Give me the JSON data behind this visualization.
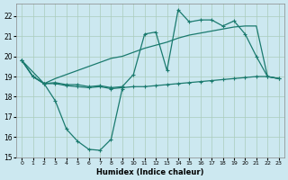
{
  "xlabel": "Humidex (Indice chaleur)",
  "background_color": "#cce8f0",
  "grid_color": "#aaccbb",
  "line_color": "#1a7a6e",
  "xlim": [
    -0.5,
    23.5
  ],
  "ylim": [
    15.0,
    22.6
  ],
  "yticks": [
    15,
    16,
    17,
    18,
    19,
    20,
    21,
    22
  ],
  "xticks": [
    0,
    1,
    2,
    3,
    4,
    5,
    6,
    7,
    8,
    9,
    10,
    11,
    12,
    13,
    14,
    15,
    16,
    17,
    18,
    19,
    20,
    21,
    22,
    23
  ],
  "curve_zigzag_x": [
    0,
    1,
    2,
    3,
    4,
    5,
    6,
    7,
    8,
    9,
    10,
    11,
    12,
    13,
    14,
    15,
    16,
    17,
    18,
    19,
    20,
    21,
    22,
    23
  ],
  "curve_zigzag_y": [
    19.8,
    19.0,
    18.65,
    18.7,
    18.6,
    18.6,
    18.5,
    18.55,
    18.45,
    18.5,
    19.1,
    21.1,
    21.2,
    19.3,
    22.3,
    21.7,
    21.8,
    21.8,
    21.5,
    21.75,
    21.1,
    20.0,
    19.0,
    18.9
  ],
  "curve_linear_x": [
    0,
    1,
    2,
    3,
    4,
    5,
    6,
    7,
    8,
    9,
    10,
    11,
    12,
    13,
    14,
    15,
    16,
    17,
    18,
    19,
    20,
    21,
    22,
    23
  ],
  "curve_linear_y": [
    19.8,
    19.0,
    18.65,
    18.9,
    19.1,
    19.3,
    19.5,
    19.7,
    19.9,
    20.0,
    20.2,
    20.4,
    20.55,
    20.7,
    20.9,
    21.05,
    21.15,
    21.25,
    21.35,
    21.45,
    21.5,
    21.5,
    19.0,
    18.9
  ],
  "curve_low_x": [
    0,
    1,
    2,
    3,
    4,
    5,
    6,
    7,
    8,
    9,
    10,
    11,
    12,
    13,
    14,
    15,
    16,
    17,
    18,
    19,
    20,
    21,
    22,
    23
  ],
  "curve_low_y": [
    19.8,
    19.0,
    18.65,
    18.65,
    18.55,
    18.5,
    18.45,
    18.5,
    18.4,
    18.45,
    18.5,
    18.5,
    18.55,
    18.6,
    18.65,
    18.7,
    18.75,
    18.8,
    18.85,
    18.9,
    18.95,
    19.0,
    19.0,
    18.9
  ],
  "curve_udip_x": [
    0,
    2,
    3,
    4,
    5,
    6,
    7,
    8,
    9
  ],
  "curve_udip_y": [
    19.8,
    18.65,
    17.8,
    16.4,
    15.8,
    15.4,
    15.35,
    15.9,
    18.4
  ]
}
